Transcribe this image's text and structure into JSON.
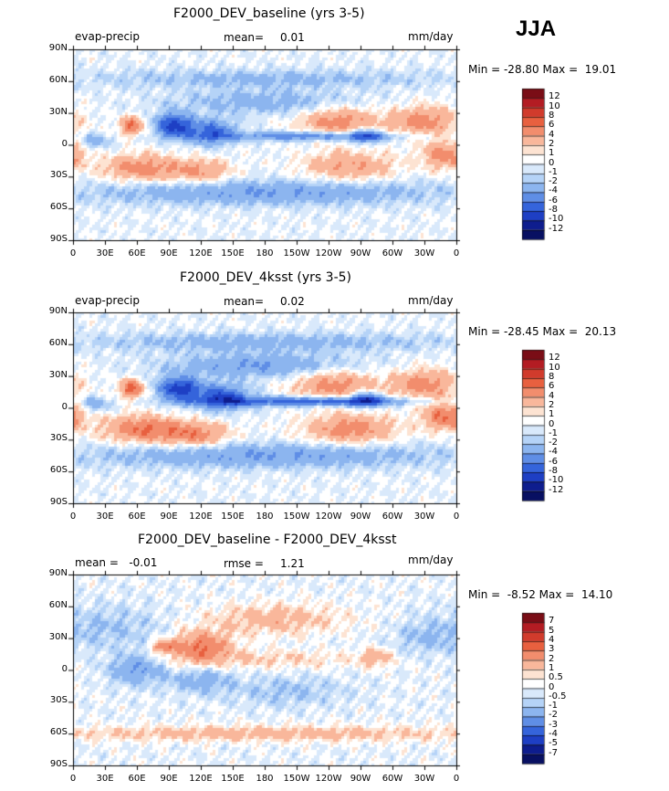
{
  "season": "JJA",
  "panels": [
    {
      "title": "F2000_DEV_baseline (yrs 3-5)",
      "left_label": "evap-precip",
      "stat_label": "mean=",
      "stat_value": "0.01",
      "units": "mm/day",
      "minmax": "Min = -28.80 Max =  19.01",
      "colorbar": [
        "12",
        "10",
        "8",
        "6",
        "4",
        "2",
        "1",
        "0",
        "-1",
        "-2",
        "-4",
        "-6",
        "-8",
        "-10",
        "-12"
      ]
    },
    {
      "title": "F2000_DEV_4ksst (yrs 3-5)",
      "left_label": "evap-precip",
      "stat_label": "mean=",
      "stat_value": "0.02",
      "units": "mm/day",
      "minmax": "Min = -28.45 Max =  20.13",
      "colorbar": [
        "12",
        "10",
        "8",
        "6",
        "4",
        "2",
        "1",
        "0",
        "-1",
        "-2",
        "-4",
        "-6",
        "-8",
        "-10",
        "-12"
      ]
    },
    {
      "title": "F2000_DEV_baseline - F2000_DEV_4ksst",
      "left_label": "mean =   -0.01",
      "stat_label": "rmse =",
      "stat_value": "1.21",
      "units": "mm/day",
      "minmax": "Min =  -8.52 Max =  14.10",
      "colorbar": [
        "7",
        "5",
        "4",
        "3",
        "2",
        "1",
        "0.5",
        "0",
        "-0.5",
        "-1",
        "-2",
        "-3",
        "-4",
        "-5",
        "-7"
      ]
    }
  ],
  "chart_data": {
    "type": "heatmap",
    "variable": "evap-precip",
    "units": "mm/day",
    "season": "JJA",
    "xticks": [
      "0",
      "30E",
      "60E",
      "90E",
      "120E",
      "150E",
      "180",
      "150W",
      "120W",
      "90W",
      "60W",
      "30W",
      "0"
    ],
    "yticks": [
      "90N",
      "60N",
      "30N",
      "0",
      "30S",
      "60S",
      "90S"
    ],
    "xlim_deg_east": [
      0,
      360
    ],
    "ylim_deg_north": [
      -90,
      90
    ],
    "cmap_colors": [
      "#7a0d16",
      "#b31c23",
      "#d13b2c",
      "#e8603f",
      "#f28d6d",
      "#f9b79b",
      "#fde3d2",
      "#ffffff",
      "#d9e9fb",
      "#b5d3f7",
      "#8cb5ef",
      "#5f8ee6",
      "#3564db",
      "#1e3fc4",
      "#0e1d8e",
      "#081062"
    ],
    "fields": [
      {
        "name": "F2000_DEV_baseline (yrs 3-5)",
        "scale": 12,
        "mean": 0.01,
        "min": -28.8,
        "max": 19.01,
        "levels": [
          -12,
          -10,
          -8,
          -6,
          -4,
          -2,
          -1,
          0,
          1,
          2,
          4,
          6,
          8,
          10,
          12
        ],
        "features": [
          {
            "lon": 250,
            "lat": 22,
            "sx": 26,
            "sy": 10,
            "amp": 5
          },
          {
            "lon": 330,
            "lat": 22,
            "sx": 22,
            "sy": 10,
            "amp": 5
          },
          {
            "lon": 120,
            "lat": -25,
            "sx": 20,
            "sy": 8,
            "amp": 4
          },
          {
            "lon": 65,
            "lat": -22,
            "sx": 25,
            "sy": 9,
            "amp": 5
          },
          {
            "lon": 260,
            "lat": -20,
            "sx": 30,
            "sy": 10,
            "amp": 4
          },
          {
            "lon": 350,
            "lat": -10,
            "sx": 15,
            "sy": 9,
            "amp": 5
          },
          {
            "lon": 225,
            "lat": 8,
            "sx": 60,
            "sy": 3,
            "amp": -6
          },
          {
            "lon": 95,
            "lat": 18,
            "sx": 12,
            "sy": 8,
            "amp": -9
          },
          {
            "lon": 130,
            "lat": 12,
            "sx": 15,
            "sy": 8,
            "amp": -7
          },
          {
            "lon": 275,
            "lat": 8,
            "sx": 10,
            "sy": 5,
            "amp": -6
          },
          {
            "lon": 20,
            "lat": 3,
            "sx": 10,
            "sy": 5,
            "amp": -3
          },
          {
            "lon": 180,
            "lat": 40,
            "sx": 60,
            "sy": 8,
            "amp": -3
          },
          {
            "lon": 180,
            "lat": -45,
            "sx": 120,
            "sy": 8,
            "amp": -4
          },
          {
            "lon": 180,
            "lat": 62,
            "sx": 120,
            "sy": 6,
            "amp": -2.5
          },
          {
            "lon": 55,
            "lat": 18,
            "sx": 8,
            "sy": 6,
            "amp": 6
          }
        ]
      },
      {
        "name": "F2000_DEV_4ksst (yrs 3-5)",
        "scale": 12,
        "mean": 0.02,
        "min": -28.45,
        "max": 20.13,
        "levels": [
          -12,
          -10,
          -8,
          -6,
          -4,
          -2,
          -1,
          0,
          1,
          2,
          4,
          6,
          8,
          10,
          12
        ],
        "features": [
          {
            "lon": 245,
            "lat": 22,
            "sx": 26,
            "sy": 10,
            "amp": 5
          },
          {
            "lon": 330,
            "lat": 22,
            "sx": 22,
            "sy": 10,
            "amp": 5
          },
          {
            "lon": 115,
            "lat": -25,
            "sx": 22,
            "sy": 8,
            "amp": 5
          },
          {
            "lon": 65,
            "lat": -20,
            "sx": 25,
            "sy": 9,
            "amp": 6
          },
          {
            "lon": 260,
            "lat": -20,
            "sx": 30,
            "sy": 10,
            "amp": 5
          },
          {
            "lon": 350,
            "lat": -8,
            "sx": 15,
            "sy": 9,
            "amp": 6
          },
          {
            "lon": 225,
            "lat": 6,
            "sx": 65,
            "sy": 3,
            "amp": -8
          },
          {
            "lon": 100,
            "lat": 18,
            "sx": 14,
            "sy": 8,
            "amp": -9
          },
          {
            "lon": 140,
            "lat": 10,
            "sx": 18,
            "sy": 8,
            "amp": -8
          },
          {
            "lon": 275,
            "lat": 8,
            "sx": 10,
            "sy": 5,
            "amp": -7
          },
          {
            "lon": 20,
            "lat": 3,
            "sx": 10,
            "sy": 5,
            "amp": -3
          },
          {
            "lon": 175,
            "lat": 40,
            "sx": 60,
            "sy": 8,
            "amp": -4
          },
          {
            "lon": 180,
            "lat": -45,
            "sx": 120,
            "sy": 8,
            "amp": -4
          },
          {
            "lon": 180,
            "lat": 62,
            "sx": 120,
            "sy": 6,
            "amp": -3
          },
          {
            "lon": 55,
            "lat": 18,
            "sx": 8,
            "sy": 6,
            "amp": 7
          }
        ]
      },
      {
        "name": "F2000_DEV_baseline - F2000_DEV_4ksst",
        "scale": 7,
        "mean": -0.01,
        "rmse": 1.21,
        "min": -8.52,
        "max": 14.1,
        "levels": [
          -7,
          -5,
          -4,
          -3,
          -2,
          -1,
          -0.5,
          0,
          0.5,
          1,
          2,
          3,
          4,
          5,
          7
        ],
        "features": [
          {
            "lon": 120,
            "lat": 22,
            "sx": 20,
            "sy": 10,
            "amp": 3
          },
          {
            "lon": 85,
            "lat": 22,
            "sx": 8,
            "sy": 4,
            "amp": 2.5
          },
          {
            "lon": 60,
            "lat": 0,
            "sx": 18,
            "sy": 10,
            "amp": -2
          },
          {
            "lon": 120,
            "lat": -10,
            "sx": 20,
            "sy": 8,
            "amp": -1.5
          },
          {
            "lon": 180,
            "lat": -60,
            "sx": 160,
            "sy": 5,
            "amp": 1.5
          },
          {
            "lon": 190,
            "lat": 48,
            "sx": 45,
            "sy": 10,
            "amp": 1.5
          },
          {
            "lon": 185,
            "lat": 10,
            "sx": 60,
            "sy": 6,
            "amp": 1
          },
          {
            "lon": 285,
            "lat": 12,
            "sx": 10,
            "sy": 6,
            "amp": 1.5
          },
          {
            "lon": 330,
            "lat": 30,
            "sx": 20,
            "sy": 10,
            "amp": -1
          },
          {
            "lon": 30,
            "lat": 40,
            "sx": 40,
            "sy": 15,
            "amp": -1
          },
          {
            "lon": 200,
            "lat": -20,
            "sx": 40,
            "sy": 10,
            "amp": -1
          }
        ]
      }
    ]
  }
}
